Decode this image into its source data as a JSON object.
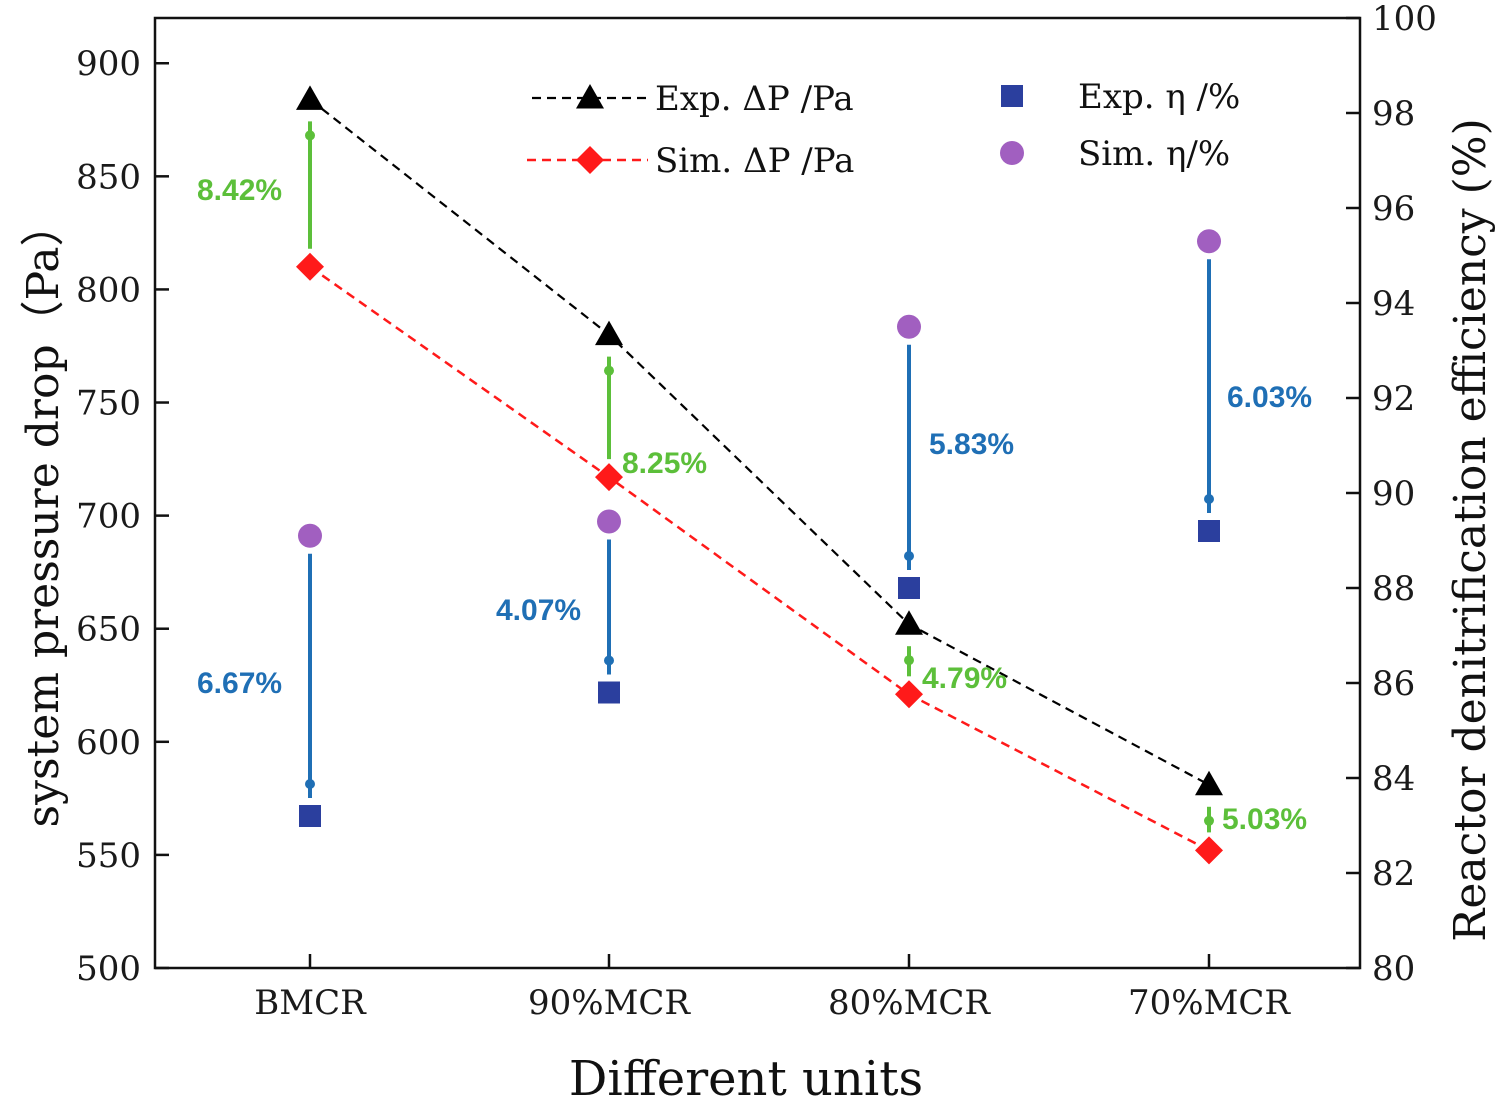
{
  "chart_data": {
    "type": "line",
    "xlabel": "Different units",
    "ylabel_left": "system pressure drop（Pa）",
    "ylabel_right": "Reactor denitrification efficiency  (%)",
    "categories": [
      "BMCR",
      "90%MCR",
      "80%MCR",
      "70%MCR"
    ],
    "ylim_left": [
      500,
      920
    ],
    "yticks_left": [
      500,
      550,
      600,
      650,
      700,
      750,
      800,
      850,
      900
    ],
    "ylim_right": [
      80,
      100
    ],
    "yticks_right": [
      80,
      82,
      84,
      86,
      88,
      90,
      92,
      94,
      96,
      98,
      100
    ],
    "series": [
      {
        "name": "Exp. ΔP /Pa",
        "axis": "left",
        "marker": "triangle",
        "line": "dashed",
        "color": "#000000",
        "values": [
          884,
          780,
          652,
          581
        ]
      },
      {
        "name": "Sim. ΔP /Pa",
        "axis": "left",
        "marker": "diamond",
        "line": "dashed",
        "color": "#ff1a1a",
        "values": [
          810,
          717,
          621,
          552
        ]
      },
      {
        "name": "Exp. η /%",
        "axis": "right",
        "marker": "square",
        "line": "none",
        "color": "#2b3f9e",
        "values": [
          83.2,
          85.8,
          88.0,
          89.2
        ]
      },
      {
        "name": "Sim. η/%",
        "axis": "right",
        "marker": "circle",
        "line": "none",
        "color": "#a15fc0",
        "values": [
          89.1,
          89.4,
          93.5,
          95.3
        ]
      }
    ],
    "annotations": [
      {
        "text": "8.42%",
        "pair": "pressure",
        "category": "BMCR",
        "color": "#5cbf3a"
      },
      {
        "text": "8.25%",
        "pair": "pressure",
        "category": "90%MCR",
        "color": "#5cbf3a"
      },
      {
        "text": "4.79%",
        "pair": "pressure",
        "category": "80%MCR",
        "color": "#5cbf3a"
      },
      {
        "text": "5.03%",
        "pair": "pressure",
        "category": "70%MCR",
        "color": "#5cbf3a"
      },
      {
        "text": "6.67%",
        "pair": "efficiency",
        "category": "BMCR",
        "color": "#1f6fb5"
      },
      {
        "text": "4.07%",
        "pair": "efficiency",
        "category": "90%MCR",
        "color": "#1f6fb5"
      },
      {
        "text": "5.83%",
        "pair": "efficiency",
        "category": "80%MCR",
        "color": "#1f6fb5"
      },
      {
        "text": "6.03%",
        "pair": "efficiency",
        "category": "70%MCR",
        "color": "#1f6fb5"
      }
    ]
  }
}
